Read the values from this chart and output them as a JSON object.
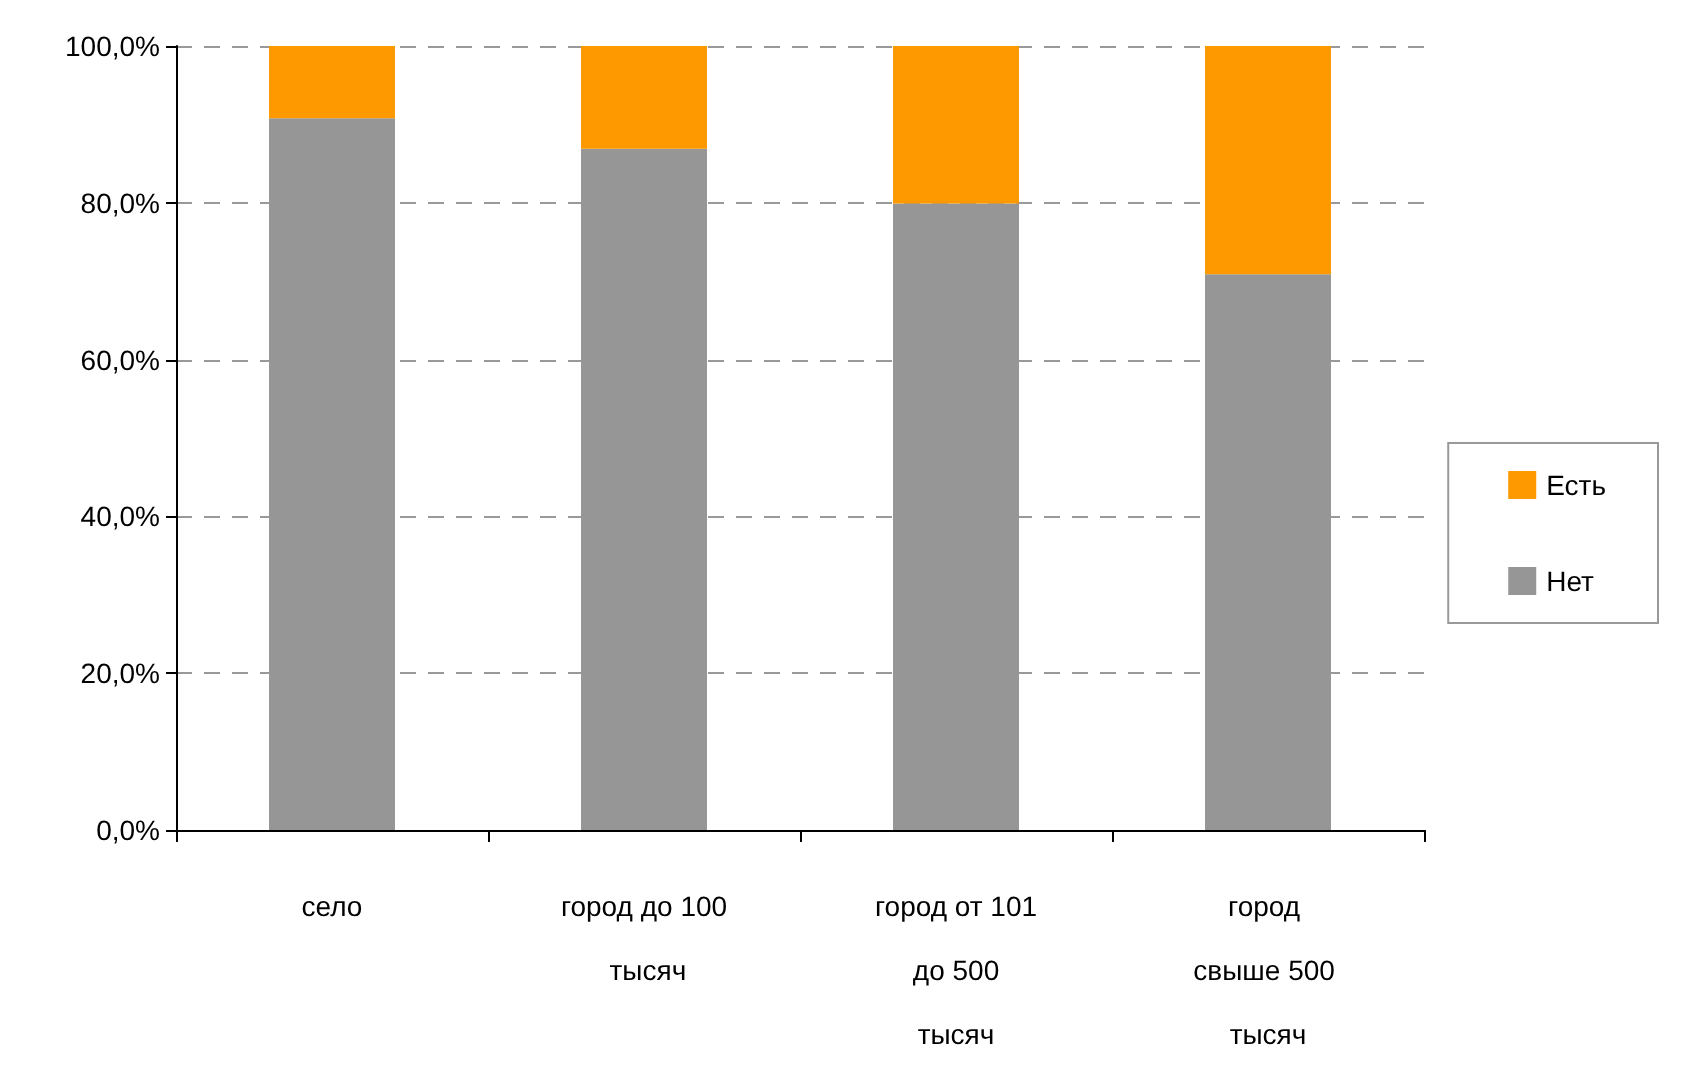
{
  "chart_data": {
    "type": "bar",
    "stacked": true,
    "categories": [
      "село",
      "город до 100 тысяч",
      "город от 101 до 500 тысяч",
      "город свыше 500 тысяч"
    ],
    "series": [
      {
        "name": "Нет",
        "color": "#969696",
        "values": [
          90.8,
          86.9,
          79.9,
          70.9
        ]
      },
      {
        "name": "Есть",
        "color": "#ff9900",
        "values": [
          9.2,
          13.1,
          20.1,
          29.1
        ]
      }
    ],
    "ylim": [
      0,
      100
    ],
    "yticks": [
      {
        "value": 0,
        "label": "0,0%"
      },
      {
        "value": 20,
        "label": "20,0%"
      },
      {
        "value": 40,
        "label": "40,0%"
      },
      {
        "value": 60,
        "label": "60,0%"
      },
      {
        "value": 80,
        "label": "80,0%"
      },
      {
        "value": 100,
        "label": "100,0%"
      }
    ],
    "grid": "y",
    "legend": "right"
  }
}
